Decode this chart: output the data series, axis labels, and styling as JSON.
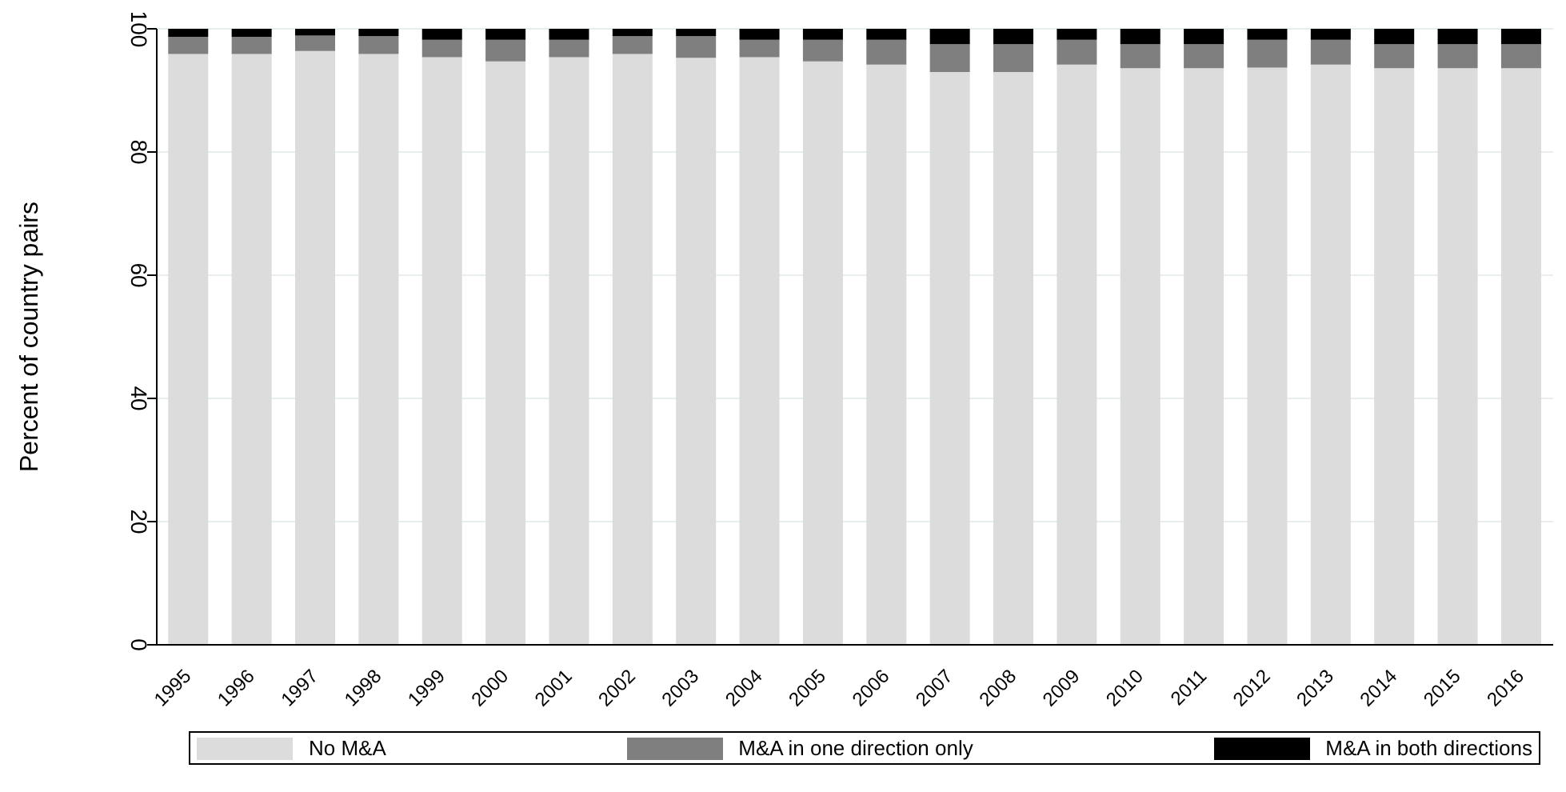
{
  "chart_data": {
    "type": "bar",
    "stacked": true,
    "ylabel": "Percent of country pairs",
    "categories": [
      "1995",
      "1996",
      "1997",
      "1998",
      "1999",
      "2000",
      "2001",
      "2002",
      "2003",
      "2004",
      "2005",
      "2006",
      "2007",
      "2008",
      "2009",
      "2010",
      "2011",
      "2012",
      "2013",
      "2014",
      "2015",
      "2016"
    ],
    "series": [
      {
        "name": "No M&A",
        "color": "#dcdcdc",
        "values": [
          95.9,
          95.9,
          96.4,
          95.9,
          95.4,
          94.7,
          95.4,
          95.9,
          95.3,
          95.4,
          94.7,
          94.2,
          93.0,
          93.0,
          94.2,
          93.6,
          93.6,
          93.7,
          94.2,
          93.6,
          93.6,
          93.6
        ]
      },
      {
        "name": "M&A in one direction only",
        "color": "#7f7f7f",
        "values": [
          2.8,
          2.8,
          2.5,
          2.9,
          2.8,
          3.5,
          2.8,
          2.9,
          3.5,
          2.8,
          3.5,
          4.0,
          4.5,
          4.5,
          4.0,
          3.9,
          3.9,
          4.5,
          4.0,
          3.9,
          3.9,
          3.9
        ]
      },
      {
        "name": "M&A in both directions",
        "color": "#000000",
        "values": [
          1.3,
          1.3,
          1.1,
          1.2,
          1.8,
          1.8,
          1.8,
          1.2,
          1.2,
          1.8,
          1.8,
          1.8,
          2.5,
          2.5,
          1.8,
          2.5,
          2.5,
          1.8,
          1.8,
          2.5,
          2.5,
          2.5
        ]
      }
    ],
    "ylim": [
      0,
      100
    ],
    "yticks": [
      0,
      20,
      40,
      60,
      80,
      100
    ],
    "grid": "y",
    "legend": "bottom"
  }
}
